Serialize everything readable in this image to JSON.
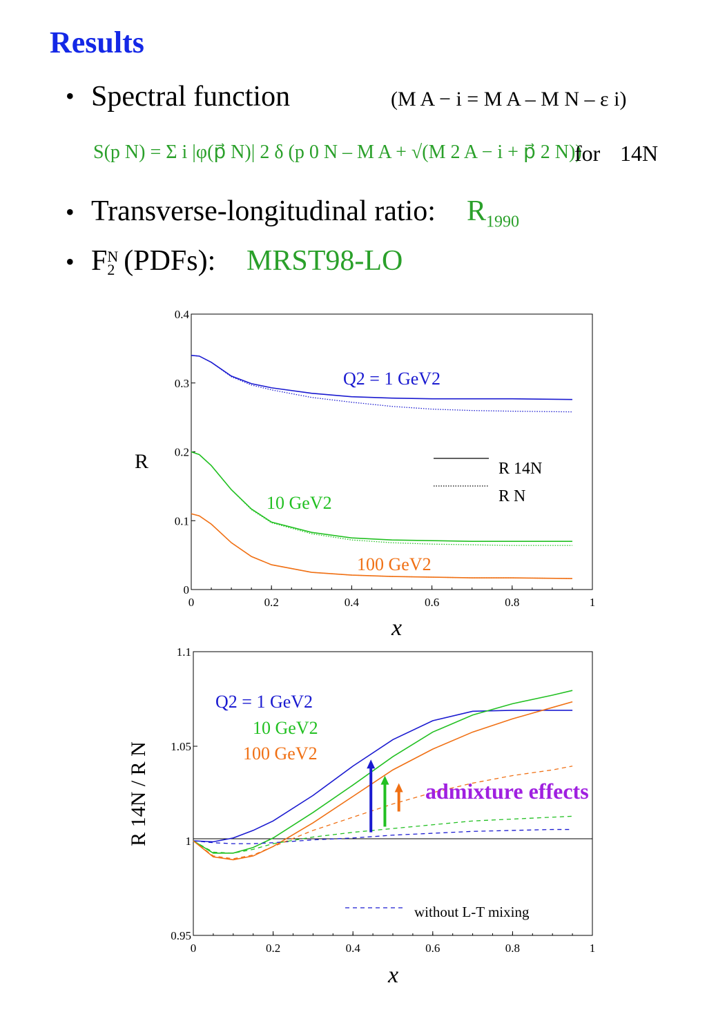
{
  "title": "Results",
  "bullets": {
    "b1": {
      "text": "Spectral function",
      "aside": "(M A − i = M A – M N – ε i)"
    },
    "formula": {
      "text": "S(p N) = Σ i |φ(p⃗ N)| 2 δ (p 0 N – M A + √(M 2 A − i + p⃗ 2 N))",
      "suffix": "for",
      "nucleus": "14N"
    },
    "b2": {
      "text": "Transverse-longitudinal ratio:",
      "value": "R",
      "value_sub": "1990"
    },
    "b3": {
      "text_main": "F",
      "text_sup": "N",
      "text_sub": "2",
      "text_rest": "(PDFs):",
      "value": "MRST98-LO"
    }
  },
  "colors": {
    "title": "#1428e6",
    "green": "#2aa02a",
    "blue": "#1a1ad0",
    "green_curve": "#22c022",
    "orange": "#f07014",
    "purple": "#a020e0"
  },
  "chart_data": [
    {
      "type": "line",
      "xlabel": "x",
      "ylabel": "R",
      "xlim": [
        0,
        1
      ],
      "ylim": [
        0,
        0.4
      ],
      "xticks": [
        "0",
        "0.2",
        "0.4",
        "0.6",
        "0.8",
        "1"
      ],
      "yticks": [
        "0",
        "0.1",
        "0.2",
        "0.3",
        "0.4"
      ],
      "legend": [
        {
          "label": "R 14N",
          "style": "solid"
        },
        {
          "label": "R N",
          "style": "dotted"
        }
      ],
      "annotations": [
        "Q2 = 1 GeV2",
        "10 GeV2",
        "100 GeV2"
      ],
      "x": [
        0,
        0.02,
        0.05,
        0.1,
        0.15,
        0.2,
        0.3,
        0.4,
        0.5,
        0.6,
        0.7,
        0.8,
        0.95
      ],
      "series": [
        {
          "group": "Q2 = 1 GeV2",
          "style": "solid",
          "color": "#1a1ad0",
          "values": [
            0.34,
            0.339,
            0.33,
            0.31,
            0.299,
            0.293,
            0.285,
            0.28,
            0.278,
            0.277,
            0.277,
            0.277,
            0.276
          ]
        },
        {
          "group": "Q2 = 1 GeV2",
          "style": "dotted",
          "color": "#1a1ad0",
          "values": [
            0.34,
            0.339,
            0.33,
            0.309,
            0.297,
            0.29,
            0.279,
            0.272,
            0.266,
            0.262,
            0.26,
            0.259,
            0.258
          ]
        },
        {
          "group": "10 GeV2",
          "style": "solid",
          "color": "#22c022",
          "values": [
            0.2,
            0.196,
            0.18,
            0.145,
            0.117,
            0.098,
            0.083,
            0.075,
            0.072,
            0.071,
            0.07,
            0.07,
            0.07
          ]
        },
        {
          "group": "10 GeV2",
          "style": "dotted",
          "color": "#22c022",
          "values": [
            0.2,
            0.196,
            0.18,
            0.145,
            0.116,
            0.097,
            0.081,
            0.072,
            0.068,
            0.066,
            0.065,
            0.064,
            0.064
          ]
        },
        {
          "group": "100 GeV2",
          "style": "solid",
          "color": "#f07014",
          "values": [
            0.11,
            0.107,
            0.095,
            0.068,
            0.048,
            0.036,
            0.025,
            0.021,
            0.019,
            0.018,
            0.017,
            0.017,
            0.016
          ]
        },
        {
          "group": "100 GeV2",
          "style": "dotted",
          "color": "#f07014",
          "values": [
            0.11,
            0.107,
            0.095,
            0.068,
            0.048,
            0.036,
            0.025,
            0.021,
            0.019,
            0.018,
            0.017,
            0.017,
            0.016
          ]
        }
      ]
    },
    {
      "type": "line",
      "xlabel": "x",
      "ylabel": "R 14N / R N",
      "xlim": [
        0,
        1
      ],
      "ylim": [
        0.95,
        1.1
      ],
      "xticks": [
        "0",
        "0.2",
        "0.4",
        "0.6",
        "0.8",
        "1"
      ],
      "yticks": [
        "0.95",
        "1",
        "1.05",
        "1.1"
      ],
      "legend": [
        {
          "label": "without L-T mixing",
          "style": "dashed"
        }
      ],
      "annotations": [
        "Q2 = 1 GeV2",
        "10 GeV2",
        "100 GeV2",
        "admixture effects"
      ],
      "x": [
        0,
        0.05,
        0.1,
        0.15,
        0.2,
        0.3,
        0.4,
        0.5,
        0.6,
        0.7,
        0.8,
        0.9,
        0.95
      ],
      "series": [
        {
          "group": "Q2 = 1 GeV2",
          "style": "solid",
          "color": "#1a1ad0",
          "values": [
            1.0,
            0.9995,
            1.0015,
            1.0055,
            1.0105,
            1.024,
            1.0395,
            1.0535,
            1.0635,
            1.0685,
            1.069,
            1.069,
            1.069
          ]
        },
        {
          "group": "10 GeV2",
          "style": "solid",
          "color": "#22c022",
          "values": [
            1.0,
            0.9935,
            0.9935,
            0.9965,
            1.0015,
            1.015,
            1.0295,
            1.0445,
            1.0575,
            1.0665,
            1.0725,
            1.077,
            1.0795
          ]
        },
        {
          "group": "100 GeV2",
          "style": "solid",
          "color": "#f07014",
          "values": [
            1.0,
            0.9915,
            0.99,
            0.992,
            0.997,
            1.0095,
            1.0235,
            1.0375,
            1.0485,
            1.0575,
            1.0645,
            1.0705,
            1.0735
          ]
        },
        {
          "group": "Q2 = 1 GeV2",
          "style": "dashed",
          "color": "#1a1ad0",
          "values": [
            1.0,
            0.999,
            0.9985,
            0.9985,
            0.999,
            1.0005,
            1.0015,
            1.003,
            1.004,
            1.005,
            1.0055,
            1.006,
            1.006
          ]
        },
        {
          "group": "10 GeV2",
          "style": "dashed",
          "color": "#22c022",
          "values": [
            1.0,
            0.994,
            0.9935,
            0.9955,
            0.9985,
            1.002,
            1.0045,
            1.0065,
            1.0085,
            1.0105,
            1.0115,
            1.0125,
            1.013
          ]
        },
        {
          "group": "100 GeV2",
          "style": "dashed",
          "color": "#f07014",
          "values": [
            1.0,
            0.992,
            0.9905,
            0.9925,
            0.997,
            1.0055,
            1.0125,
            1.0195,
            1.0255,
            1.0305,
            1.0345,
            1.0375,
            1.0395
          ]
        }
      ],
      "arrows": [
        {
          "color": "#1a1ad0",
          "x": 0.445,
          "from": 1.0045,
          "to": 1.0415
        },
        {
          "color": "#22c022",
          "x": 0.48,
          "from": 1.0075,
          "to": 1.033
        },
        {
          "color": "#f07014",
          "x": 0.515,
          "from": 1.0155,
          "to": 1.029
        }
      ]
    }
  ]
}
